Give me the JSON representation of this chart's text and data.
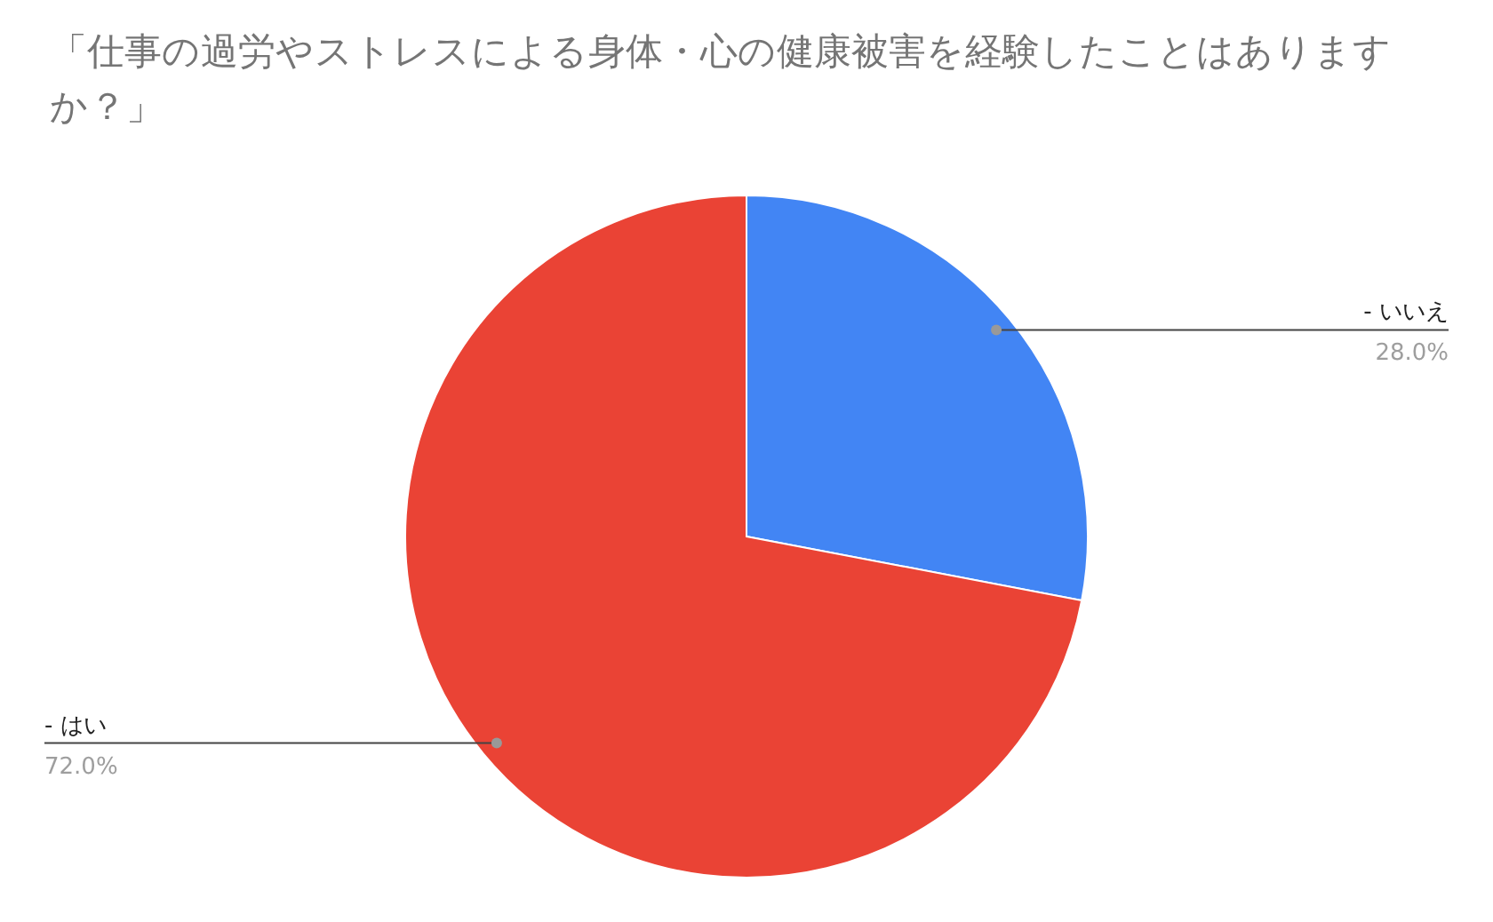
{
  "chart_data": {
    "type": "pie",
    "title": "「仕事の過労やストレスによる身体・心の健康被害を経験したことはありますか？」",
    "categories": [
      "- いいえ",
      "- はい"
    ],
    "values": [
      28,
      72
    ],
    "colors": [
      "#4285f4",
      "#ea4335"
    ],
    "value_labels": [
      "28.0%",
      "72.0%"
    ]
  }
}
